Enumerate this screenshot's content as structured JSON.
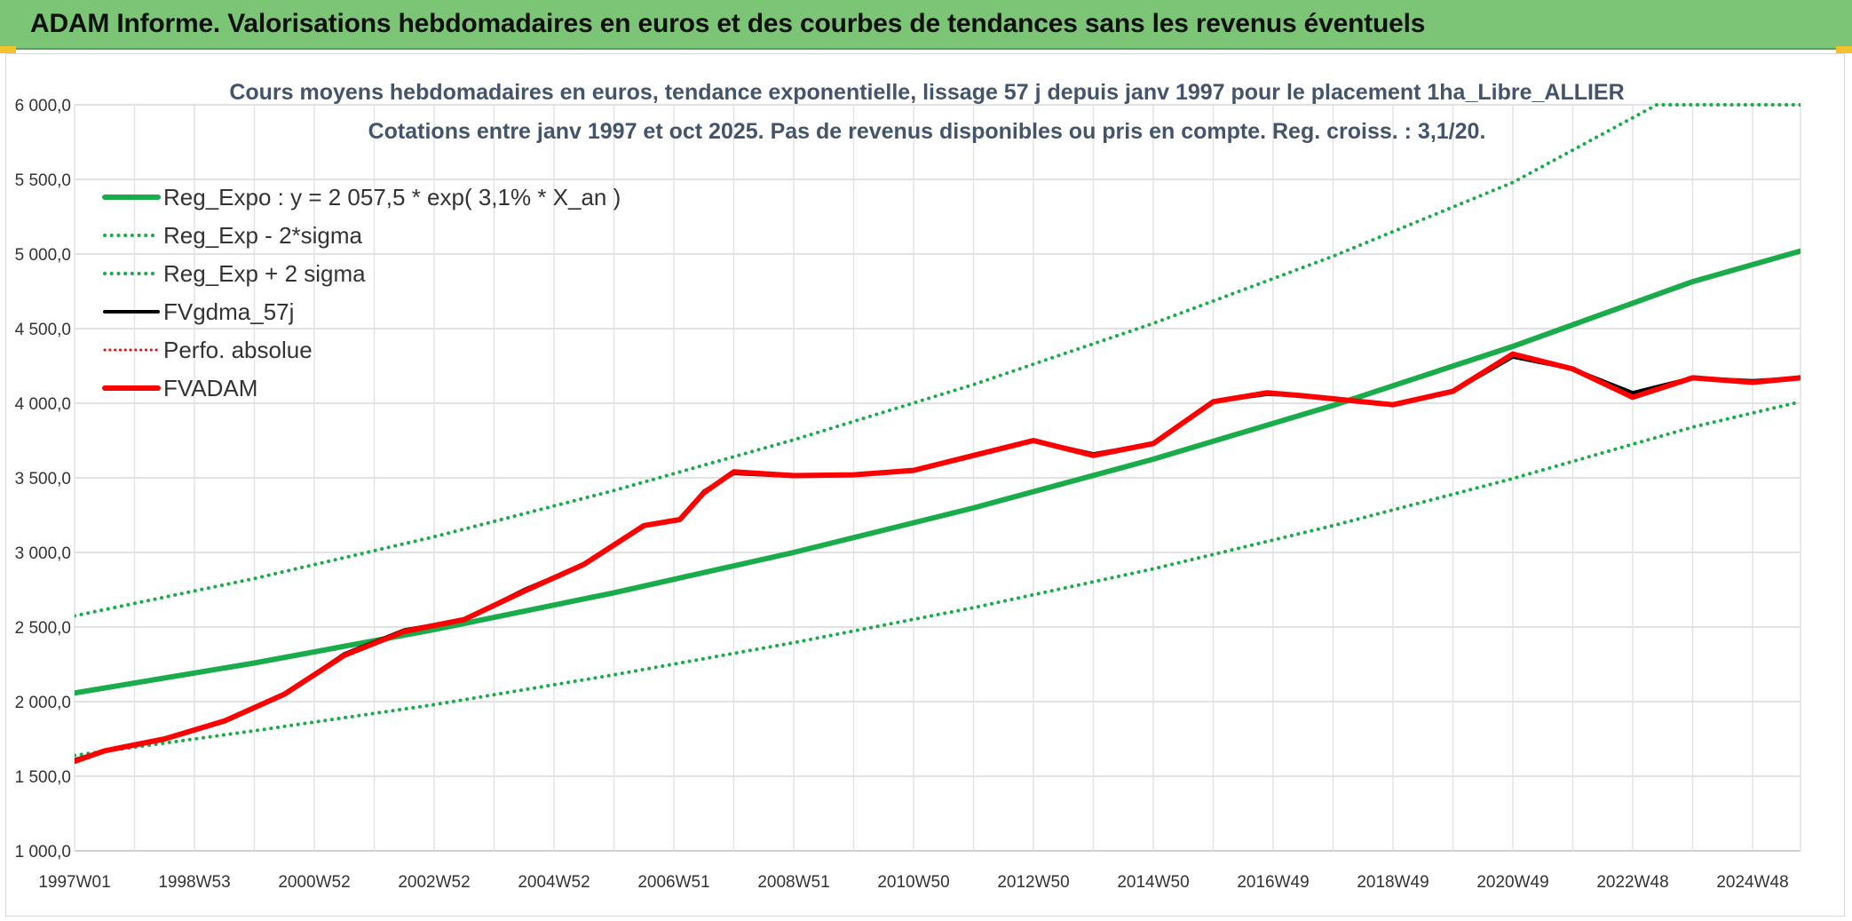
{
  "banner": {
    "title": "ADAM Informe. Valorisations hebdomadaires en euros et des courbes de tendances sans les revenus éventuels",
    "background": "#7cc576"
  },
  "chart_data": {
    "type": "line",
    "title": "Cours moyens hebdomadaires en euros, tendance exponentielle, lissage 57 j depuis janv 1997 pour le placement 1ha_Libre_ALLIER",
    "subtitle": "Cotations entre janv 1997 et oct 2025. Pas de revenus disponibles ou pris en compte. Reg. croiss. : 3,1/20.",
    "xlabel": "",
    "ylabel": "",
    "ylim": [
      1000,
      6000
    ],
    "yticks": [
      "1 000,0",
      "1 500,0",
      "2 000,0",
      "2 500,0",
      "3 000,0",
      "3 500,0",
      "4 000,0",
      "4 500,0",
      "5 000,0",
      "5 500,0",
      "6 000,0"
    ],
    "xlim": [
      1997.0,
      2025.8
    ],
    "xticks": [
      {
        "label": "1997W01",
        "x": 1997.0
      },
      {
        "label": "1998W53",
        "x": 1999.0
      },
      {
        "label": "2000W52",
        "x": 2001.0
      },
      {
        "label": "2002W52",
        "x": 2003.0
      },
      {
        "label": "2004W52",
        "x": 2005.0
      },
      {
        "label": "2006W51",
        "x": 2007.0
      },
      {
        "label": "2008W51",
        "x": 2009.0
      },
      {
        "label": "2010W50",
        "x": 2011.0
      },
      {
        "label": "2012W50",
        "x": 2013.0
      },
      {
        "label": "2014W50",
        "x": 2015.0
      },
      {
        "label": "2016W49",
        "x": 2017.0
      },
      {
        "label": "2018W49",
        "x": 2019.0
      },
      {
        "label": "2020W49",
        "x": 2021.0
      },
      {
        "label": "2022W48",
        "x": 2023.0
      },
      {
        "label": "2024W48",
        "x": 2025.0
      }
    ],
    "grid": true,
    "legend_position": "top-left",
    "series": [
      {
        "name": "Reg_Expo : y = 2 057,5 * exp( 3,1% *  X_an )",
        "color": "#1aab4b",
        "style": "solid",
        "width": 6,
        "x": [
          1997.0,
          2000.0,
          2003.0,
          2006.0,
          2009.0,
          2012.0,
          2015.0,
          2018.0,
          2021.0,
          2024.0,
          2025.8
        ],
        "y": [
          2057.5,
          2259.0,
          2483.0,
          2730.0,
          3000.0,
          3298.0,
          3625.0,
          3985.0,
          4381.0,
          4815.0,
          5020.0
        ]
      },
      {
        "name": "Reg_Exp - 2*sigma",
        "color": "#1aab4b",
        "style": "dotted",
        "width": 4,
        "x": [
          1997.0,
          2000.0,
          2003.0,
          2006.0,
          2009.0,
          2012.0,
          2015.0,
          2018.0,
          2021.0,
          2024.0,
          2025.8
        ],
        "y": [
          1640.0,
          1805.0,
          1980.0,
          2180.0,
          2395.0,
          2630.0,
          2890.0,
          3180.0,
          3495.0,
          3840.0,
          4010.0
        ]
      },
      {
        "name": "Reg_Exp + 2 sigma",
        "color": "#1aab4b",
        "style": "dotted",
        "width": 4,
        "x": [
          1997.0,
          2000.0,
          2003.0,
          2006.0,
          2009.0,
          2012.0,
          2015.0,
          2018.0,
          2021.0,
          2023.4,
          2025.8
        ],
        "y": [
          2575.0,
          2825.0,
          3105.0,
          3415.0,
          3755.0,
          4125.0,
          4535.0,
          4985.0,
          5480.0,
          6000.0,
          6000.0
        ]
      },
      {
        "name": "FVgdma_57j",
        "color": "#000000",
        "style": "solid",
        "width": 4,
        "x": [
          1997.0,
          1997.5,
          1998.5,
          1999.5,
          2000.5,
          2001.5,
          2002.5,
          2003.5,
          2004.5,
          2005.5,
          2006.5,
          2007.1,
          2007.5,
          2008.0,
          2009.0,
          2010.0,
          2011.0,
          2012.0,
          2013.0,
          2014.0,
          2015.0,
          2016.0,
          2016.9,
          2017.5,
          2018.0,
          2019.0,
          2020.0,
          2021.0,
          2022.0,
          2023.0,
          2024.0,
          2025.0,
          2025.8
        ],
        "y": [
          1610.0,
          1670.0,
          1750.0,
          1870.0,
          2050.0,
          2320.0,
          2480.0,
          2550.0,
          2750.0,
          2920.0,
          3180.0,
          3220.0,
          3410.0,
          3530.0,
          3510.0,
          3520.0,
          3550.0,
          3650.0,
          3750.0,
          3660.0,
          3730.0,
          4010.0,
          4060.0,
          4050.0,
          4030.0,
          3990.0,
          4080.0,
          4310.0,
          4230.0,
          4070.0,
          4170.0,
          4150.0,
          4170.0
        ]
      },
      {
        "name": "Perfo. absolue",
        "color": "#ff0000",
        "style": "dotted",
        "width": 3,
        "x": [],
        "y": []
      },
      {
        "name": "FVADAM",
        "color": "#ff0000",
        "style": "solid",
        "width": 6,
        "x": [
          1997.0,
          1997.5,
          1998.5,
          1999.5,
          2000.5,
          2001.5,
          2002.5,
          2003.5,
          2004.5,
          2005.5,
          2006.5,
          2007.1,
          2007.5,
          2008.0,
          2009.0,
          2010.0,
          2011.0,
          2012.0,
          2013.0,
          2014.0,
          2015.0,
          2016.0,
          2016.9,
          2017.5,
          2018.0,
          2019.0,
          2020.0,
          2021.0,
          2022.0,
          2023.0,
          2024.0,
          2025.0,
          2025.8
        ],
        "y": [
          1600.0,
          1670.0,
          1750.0,
          1870.0,
          2050.0,
          2310.0,
          2470.0,
          2550.0,
          2740.0,
          2920.0,
          3180.0,
          3220.0,
          3400.0,
          3540.0,
          3515.0,
          3520.0,
          3550.0,
          3650.0,
          3750.0,
          3650.0,
          3730.0,
          4010.0,
          4070.0,
          4050.0,
          4030.0,
          3990.0,
          4080.0,
          4330.0,
          4230.0,
          4040.0,
          4170.0,
          4140.0,
          4170.0
        ]
      }
    ]
  }
}
